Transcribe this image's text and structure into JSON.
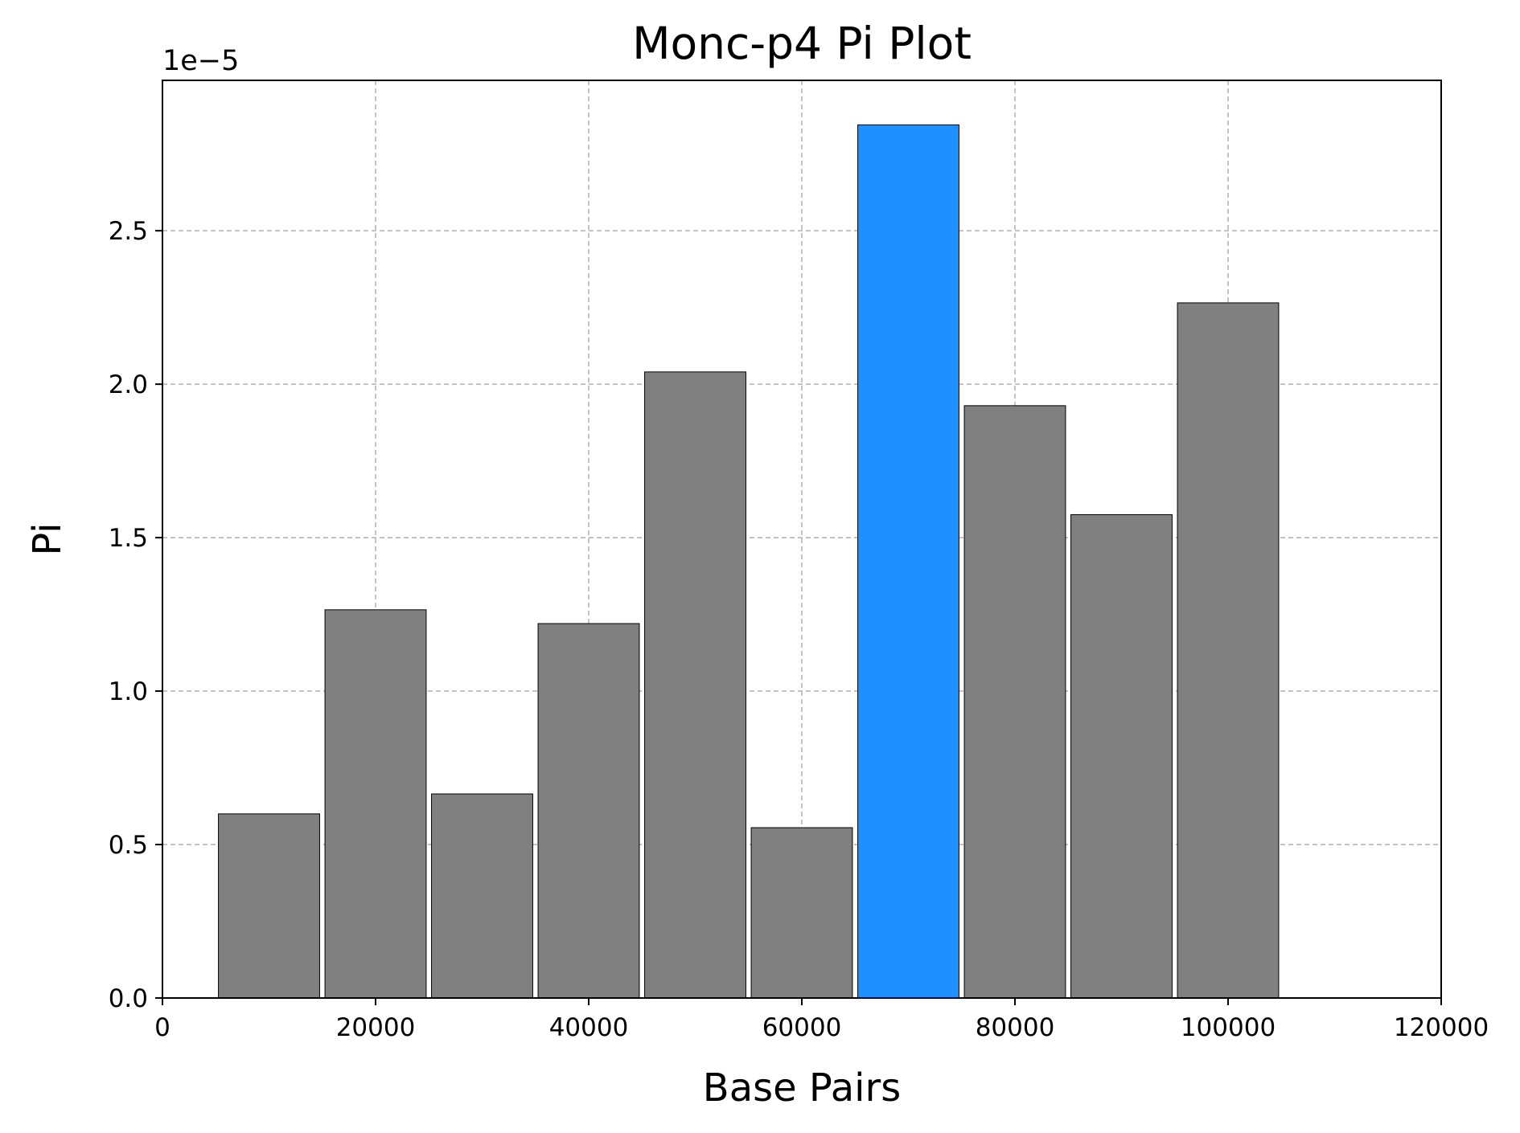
{
  "chart_data": {
    "type": "bar",
    "title": "Monc-p4 Pi Plot",
    "xlabel": "Base Pairs",
    "ylabel": "Pi",
    "y_offset_label": "1e−5",
    "y_scale_factor": 1e-05,
    "xlim": [
      0,
      120000
    ],
    "ylim": [
      0,
      2.99
    ],
    "grid": true,
    "bar_width": 9500,
    "x": [
      10000,
      20000,
      30000,
      40000,
      50000,
      60000,
      70000,
      80000,
      90000,
      100000
    ],
    "values": [
      0.6,
      1.265,
      0.665,
      1.22,
      2.04,
      0.555,
      2.845,
      1.93,
      1.575,
      2.265
    ],
    "colors": [
      "#808080",
      "#808080",
      "#808080",
      "#808080",
      "#808080",
      "#808080",
      "#1e90ff",
      "#808080",
      "#808080",
      "#808080"
    ],
    "x_ticks": [
      0,
      20000,
      40000,
      60000,
      80000,
      100000,
      120000
    ],
    "x_tick_labels": [
      "0",
      "20000",
      "40000",
      "60000",
      "80000",
      "100000",
      "120000"
    ],
    "y_ticks": [
      0.0,
      0.5,
      1.0,
      1.5,
      2.0,
      2.5
    ],
    "y_tick_labels": [
      "0.0",
      "0.5",
      "1.0",
      "1.5",
      "2.0",
      "2.5"
    ]
  }
}
